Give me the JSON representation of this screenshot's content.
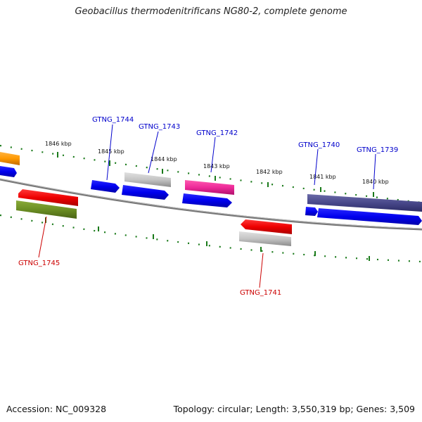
{
  "title": "Geobacillus thermodenitrificans NG80-2, complete genome",
  "footer": {
    "accession": "Accession: NC_009328",
    "summary": "Topology: circular; Length: 3,550,319 bp; Genes: 3,509"
  },
  "colors": {
    "backbone": "#808080",
    "ruler_ticks": "#1a7a1a",
    "forward_label": "#0000cc",
    "reverse_label": "#cc0000"
  },
  "scale_labels": [
    {
      "id": "1846",
      "text": "1846 kbp"
    },
    {
      "id": "1845",
      "text": "1845 kbp"
    },
    {
      "id": "1844",
      "text": "1844 kbp"
    },
    {
      "id": "1843",
      "text": "1843 kbp"
    },
    {
      "id": "1842",
      "text": "1842 kbp"
    },
    {
      "id": "1841",
      "text": "1841 kbp"
    },
    {
      "id": "1840",
      "text": "1840 kbp"
    }
  ],
  "gene_labels": [
    {
      "id": "gtng-1744",
      "text": "GTNG_1744",
      "strand": "forward"
    },
    {
      "id": "gtng-1743",
      "text": "GTNG_1743",
      "strand": "forward"
    },
    {
      "id": "gtng-1742",
      "text": "GTNG_1742",
      "strand": "forward"
    },
    {
      "id": "gtng-1740",
      "text": "GTNG_1740",
      "strand": "forward"
    },
    {
      "id": "gtng-1739",
      "text": "GTNG_1739",
      "strand": "forward"
    },
    {
      "id": "gtng-1745",
      "text": "GTNG_1745",
      "strand": "reverse"
    },
    {
      "id": "gtng-1741",
      "text": "GTNG_1741",
      "strand": "reverse"
    }
  ]
}
